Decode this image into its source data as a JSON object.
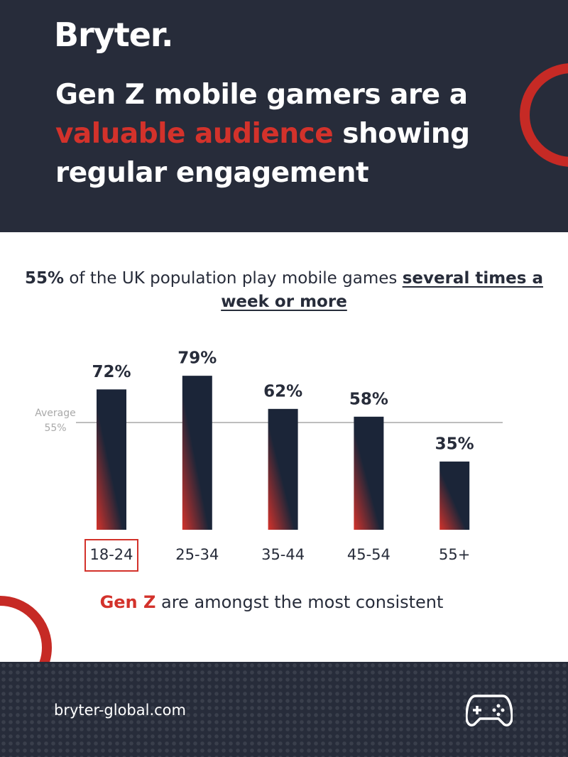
{
  "brand": "Bryter.",
  "title": [
    "Gen Z mobile gamers are a ",
    "valuable audience",
    " showing regular engagement"
  ],
  "subtitle": [
    "55%",
    " of the UK population play mobile games ",
    "several times a week or more"
  ],
  "note": [
    "Gen Z",
    " are amongst the most consistent"
  ],
  "url": "bryter-global.com",
  "chart_data": {
    "type": "bar",
    "categories": [
      "18-24",
      "25-34",
      "35-44",
      "45-54",
      "55+"
    ],
    "values": [
      72,
      79,
      62,
      58,
      35
    ],
    "value_labels": [
      "72%",
      "79%",
      "62%",
      "58%",
      "35%"
    ],
    "colors": [
      "#1b2538",
      "#d3322b"
    ],
    "ylim": [
      0,
      100
    ],
    "average": {
      "value": 55,
      "label": "Average",
      "value_label": "55%"
    },
    "highlight_category": 0
  }
}
